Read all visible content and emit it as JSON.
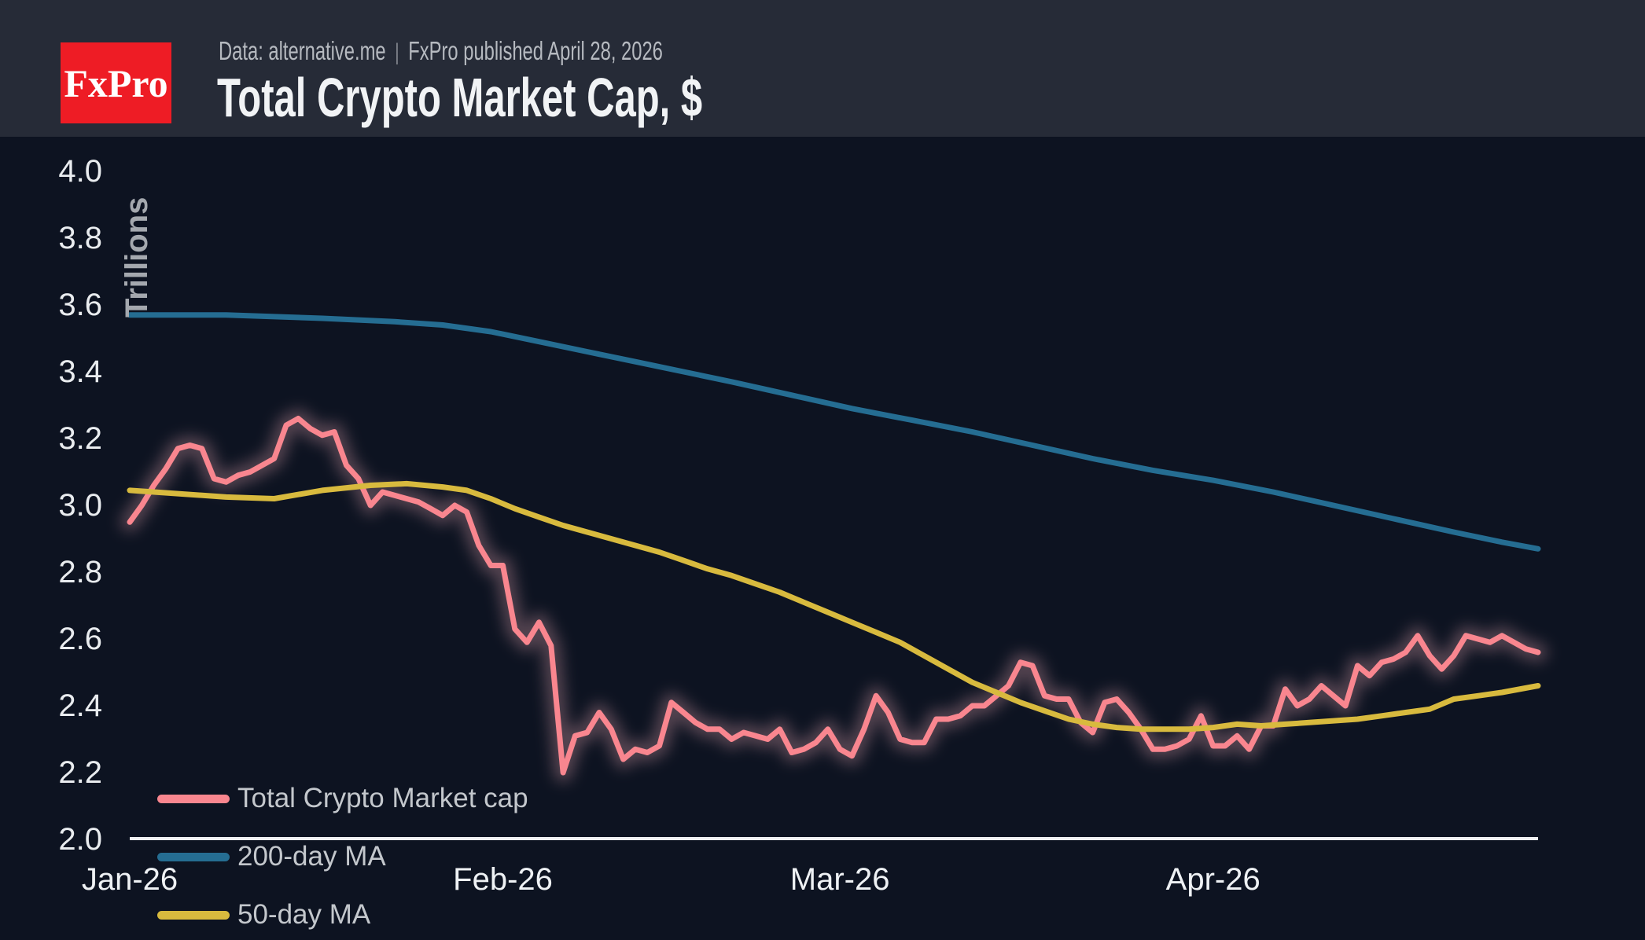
{
  "header": {
    "logo_text": "FxPro",
    "logo_bg": "#ee1c25",
    "source": "Data: alternative.me",
    "separator": "|",
    "published": "FxPro published April 28, 2026",
    "title": "Total Crypto Market Cap, $"
  },
  "colors": {
    "header_bg": "#262b37",
    "chart_bg": "#0d1321",
    "axis_line": "#f0f1f3",
    "tick_label": "#e9ecef",
    "legend_label": "#c3c7cc",
    "ylabel": "#a4a8ae"
  },
  "chart_data": {
    "type": "line",
    "title": "Total Crypto Market Cap, $",
    "ylabel": "Trillions",
    "unit": "trillions of USD",
    "grid": false,
    "legend_position": "inside-bottom-left",
    "ylim": [
      2.0,
      4.0
    ],
    "y_ticks": [
      {
        "label": "4.0",
        "value": 4.0
      },
      {
        "label": "3.8",
        "value": 3.8
      },
      {
        "label": "3.6",
        "value": 3.6
      },
      {
        "label": "3.4",
        "value": 3.4
      },
      {
        "label": "3.2",
        "value": 3.2
      },
      {
        "label": "3.0",
        "value": 3.0
      },
      {
        "label": "2.8",
        "value": 2.8
      },
      {
        "label": "2.6",
        "value": 2.6
      },
      {
        "label": "2.4",
        "value": 2.4
      },
      {
        "label": "2.2",
        "value": 2.2
      },
      {
        "label": "2.0",
        "value": 2.0
      }
    ],
    "x_ticks": [
      {
        "label": "Jan-26",
        "day": 0
      },
      {
        "label": "Feb-26",
        "day": 31
      },
      {
        "label": "Mar-26",
        "day": 59
      },
      {
        "label": "Apr-26",
        "day": 90
      }
    ],
    "days_total": 117,
    "series": [
      {
        "name": "Total Crypto Market cap",
        "color": "#f9868f",
        "glow": true,
        "day_start": 0,
        "values": [
          2.95,
          3.0,
          3.06,
          3.11,
          3.17,
          3.18,
          3.17,
          3.08,
          3.07,
          3.09,
          3.1,
          3.12,
          3.14,
          3.24,
          3.26,
          3.23,
          3.21,
          3.22,
          3.12,
          3.08,
          3.0,
          3.04,
          3.03,
          3.02,
          3.01,
          2.99,
          2.97,
          3.0,
          2.98,
          2.88,
          2.82,
          2.82,
          2.63,
          2.59,
          2.65,
          2.58,
          2.2,
          2.31,
          2.32,
          2.38,
          2.33,
          2.24,
          2.27,
          2.26,
          2.28,
          2.41,
          2.38,
          2.35,
          2.33,
          2.33,
          2.3,
          2.32,
          2.31,
          2.3,
          2.33,
          2.26,
          2.27,
          2.29,
          2.33,
          2.27,
          2.25,
          2.33,
          2.43,
          2.38,
          2.3,
          2.29,
          2.29,
          2.36,
          2.36,
          2.37,
          2.4,
          2.4,
          2.43,
          2.46,
          2.53,
          2.52,
          2.43,
          2.42,
          2.42,
          2.35,
          2.32,
          2.41,
          2.42,
          2.38,
          2.33,
          2.27,
          2.27,
          2.28,
          2.3,
          2.37,
          2.28,
          2.28,
          2.31,
          2.27,
          2.34,
          2.34,
          2.45,
          2.4,
          2.42,
          2.46,
          2.43,
          2.4,
          2.52,
          2.49,
          2.53,
          2.54,
          2.56,
          2.61,
          2.55,
          2.51,
          2.55,
          2.61,
          2.6,
          2.59,
          2.61,
          2.59,
          2.57,
          2.56
        ]
      },
      {
        "name": "200-day MA",
        "color": "#256d92",
        "glow": false,
        "points": [
          [
            0,
            3.57
          ],
          [
            8,
            3.57
          ],
          [
            16,
            3.56
          ],
          [
            22,
            3.55
          ],
          [
            26,
            3.54
          ],
          [
            30,
            3.52
          ],
          [
            34,
            3.49
          ],
          [
            38,
            3.46
          ],
          [
            42,
            3.43
          ],
          [
            46,
            3.4
          ],
          [
            50,
            3.37
          ],
          [
            55,
            3.33
          ],
          [
            60,
            3.29
          ],
          [
            65,
            3.255
          ],
          [
            70,
            3.22
          ],
          [
            75,
            3.18
          ],
          [
            80,
            3.14
          ],
          [
            85,
            3.105
          ],
          [
            90,
            3.075
          ],
          [
            95,
            3.04
          ],
          [
            100,
            3.0
          ],
          [
            105,
            2.96
          ],
          [
            110,
            2.92
          ],
          [
            114,
            2.89
          ],
          [
            117,
            2.87
          ]
        ]
      },
      {
        "name": "50-day MA",
        "color": "#d8ba3e",
        "glow": false,
        "points": [
          [
            0,
            3.045
          ],
          [
            4,
            3.035
          ],
          [
            8,
            3.025
          ],
          [
            12,
            3.02
          ],
          [
            16,
            3.045
          ],
          [
            20,
            3.06
          ],
          [
            23,
            3.065
          ],
          [
            26,
            3.055
          ],
          [
            28,
            3.045
          ],
          [
            30,
            3.02
          ],
          [
            32,
            2.99
          ],
          [
            34,
            2.965
          ],
          [
            36,
            2.94
          ],
          [
            38,
            2.92
          ],
          [
            40,
            2.9
          ],
          [
            42,
            2.88
          ],
          [
            44,
            2.86
          ],
          [
            46,
            2.835
          ],
          [
            48,
            2.81
          ],
          [
            50,
            2.79
          ],
          [
            52,
            2.765
          ],
          [
            54,
            2.74
          ],
          [
            56,
            2.71
          ],
          [
            58,
            2.68
          ],
          [
            60,
            2.65
          ],
          [
            62,
            2.62
          ],
          [
            64,
            2.59
          ],
          [
            66,
            2.55
          ],
          [
            68,
            2.51
          ],
          [
            70,
            2.47
          ],
          [
            72,
            2.44
          ],
          [
            74,
            2.41
          ],
          [
            76,
            2.385
          ],
          [
            78,
            2.36
          ],
          [
            80,
            2.345
          ],
          [
            82,
            2.335
          ],
          [
            84,
            2.33
          ],
          [
            86,
            2.33
          ],
          [
            88,
            2.33
          ],
          [
            90,
            2.335
          ],
          [
            92,
            2.345
          ],
          [
            94,
            2.34
          ],
          [
            96,
            2.345
          ],
          [
            98,
            2.35
          ],
          [
            100,
            2.355
          ],
          [
            102,
            2.36
          ],
          [
            104,
            2.37
          ],
          [
            106,
            2.38
          ],
          [
            108,
            2.39
          ],
          [
            110,
            2.42
          ],
          [
            112,
            2.43
          ],
          [
            114,
            2.44
          ],
          [
            117,
            2.46
          ]
        ]
      }
    ]
  }
}
